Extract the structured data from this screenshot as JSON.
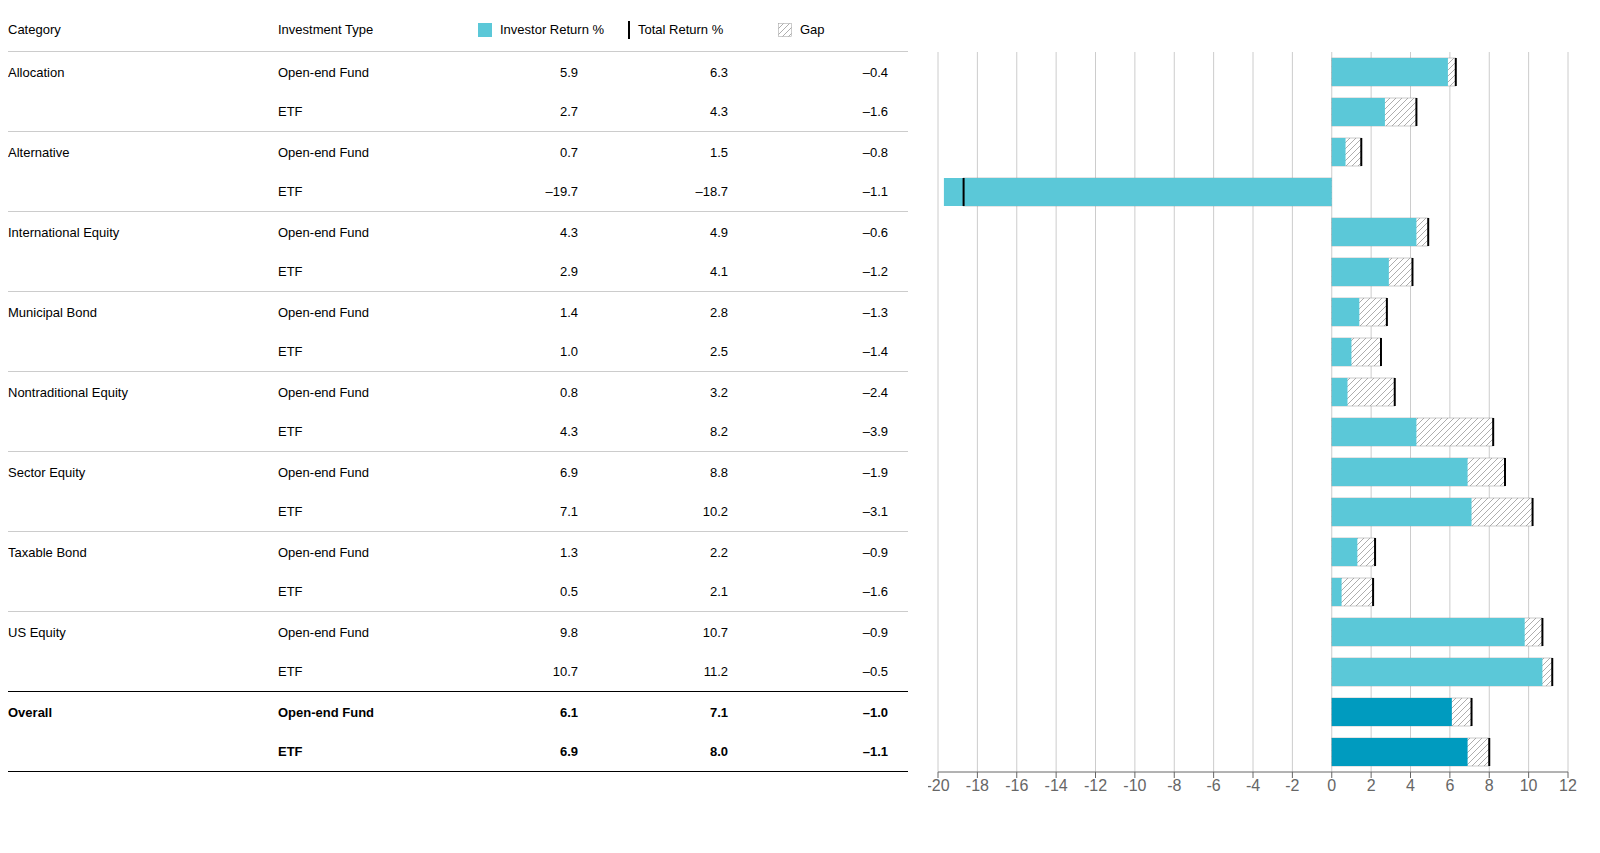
{
  "chart_data": {
    "type": "bar",
    "orientation": "horizontal",
    "column_labels": [
      "Category",
      "Investment Type"
    ],
    "groups": [
      "Allocation",
      null,
      "Alternative",
      null,
      "International Equity",
      null,
      "Municipal Bond",
      null,
      "Nontraditional Equity",
      null,
      "Sector Equity",
      null,
      "Taxable Bond",
      null,
      "US Equity",
      null,
      "Overall",
      null
    ],
    "categories": [
      "Open-end Fund",
      "ETF",
      "Open-end Fund",
      "ETF",
      "Open-end Fund",
      "ETF",
      "Open-end Fund",
      "ETF",
      "Open-end Fund",
      "ETF",
      "Open-end Fund",
      "ETF",
      "Open-end Fund",
      "ETF",
      "Open-end Fund",
      "ETF",
      "Open-end Fund",
      "ETF"
    ],
    "series": [
      {
        "name": "Investor Return %",
        "colors": [
          "#5BC8D8",
          "#5BC8D8",
          "#5BC8D8",
          "#5BC8D8",
          "#5BC8D8",
          "#5BC8D8",
          "#5BC8D8",
          "#5BC8D8",
          "#5BC8D8",
          "#5BC8D8",
          "#5BC8D8",
          "#5BC8D8",
          "#5BC8D8",
          "#5BC8D8",
          "#5BC8D8",
          "#5BC8D8",
          "#009BBF",
          "#009BBF"
        ],
        "values": [
          5.9,
          2.7,
          0.7,
          -19.7,
          4.3,
          2.9,
          1.4,
          1.0,
          0.8,
          4.3,
          6.9,
          7.1,
          1.3,
          0.5,
          9.8,
          10.7,
          6.1,
          6.9
        ],
        "value_labels": [
          "5.9",
          "2.7",
          "0.7",
          "–19.7",
          "4.3",
          "2.9",
          "1.4",
          "1.0",
          "0.8",
          "4.3",
          "6.9",
          "7.1",
          "1.3",
          "0.5",
          "9.8",
          "10.7",
          "6.1",
          "6.9"
        ]
      },
      {
        "name": "Total Return %",
        "color": "#000000",
        "values": [
          6.3,
          4.3,
          1.5,
          -18.7,
          4.9,
          4.1,
          2.8,
          2.5,
          3.2,
          8.2,
          8.8,
          10.2,
          2.2,
          2.1,
          10.7,
          11.2,
          7.1,
          8.0
        ],
        "value_labels": [
          "6.3",
          "4.3",
          "1.5",
          "–18.7",
          "4.9",
          "4.1",
          "2.8",
          "2.5",
          "3.2",
          "8.2",
          "8.8",
          "10.2",
          "2.2",
          "2.1",
          "10.7",
          "11.2",
          "7.1",
          "8.0"
        ]
      },
      {
        "name": "Gap",
        "color": "#999999",
        "values": [
          -0.4,
          -1.6,
          -0.8,
          -1.1,
          -0.6,
          -1.2,
          -1.3,
          -1.4,
          -2.4,
          -3.9,
          -1.9,
          -3.1,
          -0.9,
          -1.6,
          -0.9,
          -0.5,
          -1.0,
          -1.1
        ],
        "value_labels": [
          "–0.4",
          "–1.6",
          "–0.8",
          "–1.1",
          "–0.6",
          "–1.2",
          "–1.3",
          "–1.4",
          "–2.4",
          "–3.9",
          "–1.9",
          "–3.1",
          "–0.9",
          "–1.6",
          "–0.9",
          "–0.5",
          "–1.0",
          "–1.1"
        ]
      }
    ],
    "xlim": [
      -20,
      12
    ],
    "xticks": [
      -20,
      -18,
      -16,
      -14,
      -12,
      -10,
      -8,
      -6,
      -4,
      -2,
      0,
      2,
      4,
      6,
      8,
      10,
      12
    ],
    "grid": true
  }
}
